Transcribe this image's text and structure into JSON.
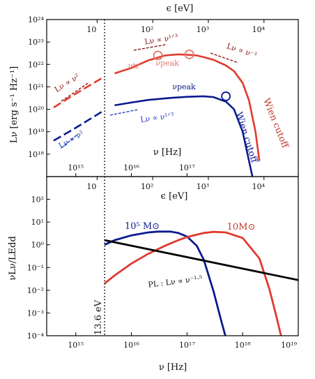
{
  "colors": {
    "red": "#e03a2f",
    "darkred": "#8b1a1a",
    "blue": "#0a1a8f",
    "black": "#000000",
    "salmon": "#e07a6a"
  },
  "chart_data": [
    {
      "type": "line",
      "title": "",
      "top_axis_label": "ϵ [eV]",
      "top_ticks": [
        "10",
        "10²",
        "10³",
        "10⁴"
      ],
      "top_tick_values_eV": [
        10,
        100,
        1000,
        10000
      ],
      "ylabel": "Lν [erg s⁻¹ Hz⁻¹]",
      "xlabel": "ν [Hz]",
      "xlog": true,
      "ylog": true,
      "xlim": [
        300000000000000.0,
        1e+19
      ],
      "ylim": [
        1e+17,
        1e+24
      ],
      "yticks": [
        "10¹⁸",
        "10¹⁹",
        "10²⁰",
        "10²¹",
        "10²²",
        "10²³",
        "10²⁴"
      ],
      "ytick_values": [
        1e+18,
        1e+19,
        1e+20,
        1e+21,
        1e+22,
        1e+23,
        1e+24
      ],
      "inner_xticks": [
        "10¹⁵",
        "10¹⁶",
        "10¹⁷"
      ],
      "inner_xtick_values": [
        1000000000000000.0,
        1e+16,
        1e+17
      ],
      "vline_hz": 3300000000000000.0,
      "series": [
        {
          "color": "#e03a2f",
          "x": [
            400000000000000.0,
            1000000000000000.0,
            3000000000000000.0,
            5000000000000000.0,
            1e+16,
            2e+16,
            4e+16,
            7e+16,
            1e+17,
            1.5e+17,
            2e+17,
            3e+17,
            5e+17,
            7e+17,
            1e+18,
            1.3e+18,
            1.7e+18,
            2e+18
          ],
          "y": [
            1.2e+20,
            5e+20,
            2.5e+21,
            4e+21,
            7e+21,
            1.5e+22,
            2.5e+22,
            2.8e+22,
            2.7e+22,
            2.5e+22,
            2.1e+22,
            1.6e+22,
            9e+21,
            5e+21,
            1.5e+21,
            2.5e+20,
            1e+19,
            5e+17
          ]
        },
        {
          "color": "#0a1a8f",
          "x": [
            400000000000000.0,
            1000000000000000.0,
            3000000000000000.0,
            5000000000000000.0,
            1e+16,
            2e+16,
            5e+16,
            1e+17,
            2e+17,
            3e+17,
            5e+17,
            7e+17,
            1e+18,
            1.3e+18,
            1.5e+18,
            1.7e+18
          ],
          "y": [
            4e+18,
            1.5e+19,
            8e+19,
            1.5e+20,
            2e+20,
            2.6e+20,
            3.2e+20,
            3.6e+20,
            3.8e+20,
            3.5e+20,
            2.2e+20,
            1e+20,
            1e+19,
            5e+17,
            1e+17,
            1e+16
          ]
        }
      ],
      "markers": [
        {
          "label": "νtr",
          "x": 3e+16,
          "y": 2.5e+22,
          "color": "#e07a6a"
        },
        {
          "label": "νpeak",
          "x": 1.1e+17,
          "y": 2.8e+22,
          "color": "#e07a6a"
        },
        {
          "label": "νpeak",
          "x": 5e+17,
          "y": 3.8e+20,
          "color": "#0a1a8f"
        }
      ],
      "annotations": {
        "slope2_red": "Lν ∝ ν²",
        "slope13_red": "Lν ∝ ν¹ᐟ³",
        "slopem1_red": "Lν ∝ ν⁻¹",
        "slope13_blue": "Lν ∝ ν¹ᐟ³",
        "slope2_blue": "Lν ∝ ν²",
        "wien_red": "Wien cutoff",
        "wien_blue": "Wien cutoff",
        "nu_tr": "νtr",
        "nu_peak": "νpeak"
      }
    },
    {
      "type": "line",
      "title": "",
      "top_axis_label": "ϵ [eV]",
      "top_ticks": [
        "10",
        "10²",
        "10³",
        "10⁴"
      ],
      "top_tick_values_eV": [
        10,
        100,
        1000,
        10000
      ],
      "ylabel": "νLν/LEdd",
      "xlabel": "ν [Hz]",
      "xlog": true,
      "ylog": true,
      "xlim": [
        300000000000000.0,
        1e+19
      ],
      "ylim": [
        0.0001,
        1000.0
      ],
      "yticks": [
        "10⁻⁴",
        "10⁻³",
        "10⁻²",
        "10⁻¹",
        "10⁰",
        "10¹",
        "10²"
      ],
      "ytick_values": [
        0.0001,
        0.001,
        0.01,
        0.1,
        1,
        10,
        100
      ],
      "xticks": [
        "10¹⁵",
        "10¹⁶",
        "10¹⁷",
        "10¹⁸",
        "10¹⁹"
      ],
      "xtick_values": [
        1000000000000000.0,
        1e+16,
        1e+17,
        1e+18,
        1e+19
      ],
      "vline_hz": 3300000000000000.0,
      "vline_label": "13.6 eV",
      "series": [
        {
          "name": "10⁵ M⊙",
          "color": "#0a1a8f",
          "x": [
            3300000000000000.0,
            5000000000000000.0,
            1e+16,
            2e+16,
            3e+16,
            5e+16,
            7e+16,
            1e+17,
            1.5e+17,
            2e+17,
            3e+17,
            4e+17,
            5e+17
          ],
          "y": [
            1.0,
            1.6,
            2.6,
            3.5,
            3.8,
            3.8,
            3.3,
            2.3,
            0.9,
            0.22,
            0.009,
            0.0006,
            8e-05
          ]
        },
        {
          "name": "10M⊙",
          "color": "#e03a2f",
          "x": [
            3300000000000000.0,
            5000000000000000.0,
            1e+16,
            2e+16,
            4e+16,
            7e+16,
            1e+17,
            2e+17,
            3e+17,
            5e+17,
            1e+18,
            2e+18,
            3e+18,
            4e+18,
            5e+18
          ],
          "y": [
            0.02,
            0.045,
            0.15,
            0.4,
            0.9,
            1.6,
            2.2,
            3.3,
            3.7,
            3.5,
            2.0,
            0.25,
            0.012,
            0.0008,
            8e-05
          ]
        },
        {
          "name": "PL :  Lν ∝ ν⁻¹·⁵",
          "color": "#000000",
          "x": [
            3300000000000000.0,
            1e+19
          ],
          "y": [
            1.6,
            0.028
          ]
        }
      ]
    }
  ]
}
